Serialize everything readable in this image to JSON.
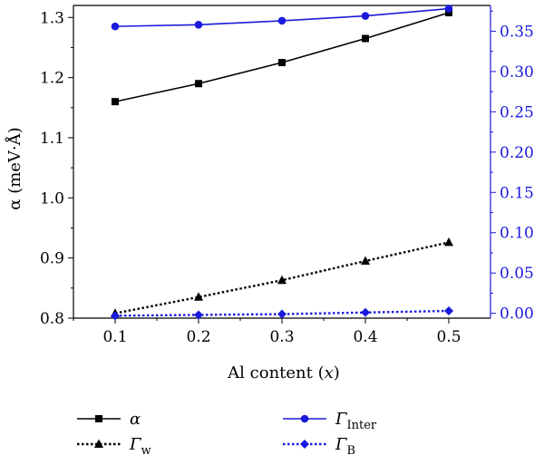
{
  "chart_data": {
    "type": "line",
    "x": [
      0.1,
      0.2,
      0.3,
      0.4,
      0.5
    ],
    "xlabel": "Al content",
    "xlabel_var": "x",
    "ylabel": "α (meV·Å)",
    "xlim": [
      0.05,
      0.55
    ],
    "ylim_left": [
      0.8,
      1.32
    ],
    "ylim_right": [
      -0.006,
      0.382
    ],
    "x_ticks": [
      "0.1",
      "0.2",
      "0.3",
      "0.4",
      "0.5"
    ],
    "y_ticks_left": [
      "0.8",
      "0.9",
      "1.0",
      "1.1",
      "1.2",
      "1.3"
    ],
    "y_ticks_right": [
      "0.00",
      "0.05",
      "0.10",
      "0.15",
      "0.20",
      "0.25",
      "0.30",
      "0.35"
    ],
    "right_axis_color": "#1a1adc",
    "grid": false,
    "legend_position": "below",
    "series": [
      {
        "name": "α",
        "axis": "left",
        "color": "#000000",
        "line": "solid",
        "marker": "square",
        "values": [
          1.16,
          1.19,
          1.225,
          1.265,
          1.308
        ]
      },
      {
        "name": "Γ",
        "sub": "w",
        "axis": "left",
        "color": "#000000",
        "line": "dotted",
        "marker": "triangle",
        "values": [
          0.808,
          0.835,
          0.863,
          0.895,
          0.926
        ]
      },
      {
        "name": "Γ",
        "sub": "Inter",
        "axis": "right",
        "color": "#1a1adc",
        "line": "solid",
        "marker": "circle",
        "values": [
          0.356,
          0.358,
          0.363,
          0.369,
          0.378
        ]
      },
      {
        "name": "Γ",
        "sub": "B",
        "axis": "right",
        "color": "#1a1adc",
        "line": "dotted",
        "marker": "diamond",
        "values": [
          -0.003,
          -0.002,
          -0.001,
          0.001,
          0.003
        ]
      }
    ]
  }
}
